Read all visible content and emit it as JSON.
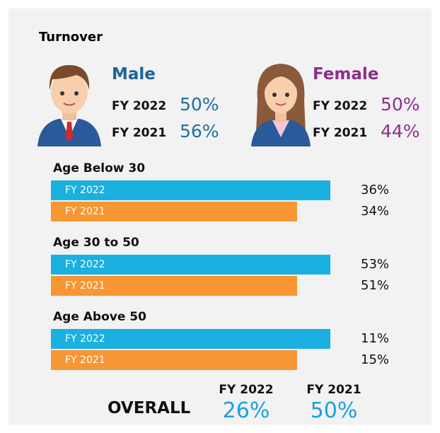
{
  "title": "Turnover",
  "genders": [
    {
      "label": "Male",
      "rows": [
        {
          "year": "FY 2022",
          "value": "50%"
        },
        {
          "year": "FY 2021",
          "value": "56%"
        }
      ]
    },
    {
      "label": "Female",
      "rows": [
        {
          "year": "FY 2022",
          "value": "50%"
        },
        {
          "year": "FY 2021",
          "value": "44%"
        }
      ]
    }
  ],
  "age_groups": [
    {
      "label": "Age Below 30",
      "bars": [
        {
          "year": "FY 2022",
          "value": "36%"
        },
        {
          "year": "FY 2021",
          "value": "34%"
        }
      ]
    },
    {
      "label": "Age 30 to 50",
      "bars": [
        {
          "year": "FY 2022",
          "value": "53%"
        },
        {
          "year": "FY 2021",
          "value": "51%"
        }
      ]
    },
    {
      "label": "Age Above 50",
      "bars": [
        {
          "year": "FY 2022",
          "value": "11%"
        },
        {
          "year": "FY 2021",
          "value": "15%"
        }
      ]
    }
  ],
  "overall": {
    "label": "OVERALL",
    "items": [
      {
        "year": "FY 2022",
        "value": "26%"
      },
      {
        "year": "FY 2021",
        "value": "50%"
      }
    ]
  }
}
